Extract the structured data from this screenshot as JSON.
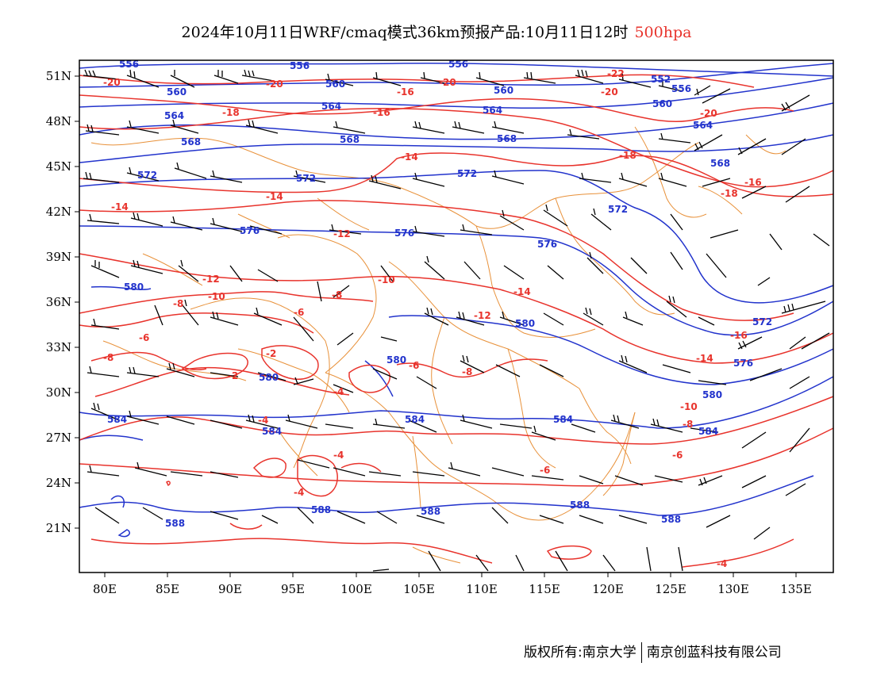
{
  "title": {
    "main": "2024年10月11日WRF/cmaq模式36km预报产品:10月11日12时",
    "level": "500hpa"
  },
  "axes": {
    "lat_labels": [
      "51N",
      "48N",
      "45N",
      "42N",
      "39N",
      "36N",
      "33N",
      "30N",
      "27N",
      "24N",
      "21N"
    ],
    "lon_labels": [
      "80E",
      "85E",
      "90E",
      "95E",
      "100E",
      "105E",
      "110E",
      "115E",
      "120E",
      "125E",
      "130E",
      "135E"
    ]
  },
  "colors": {
    "geopotential": "#2233cc",
    "temperature": "#e8332c",
    "boundaries": "#e8913a",
    "wind": "#000000"
  },
  "geopotential_labels": [
    "556",
    "560",
    "564",
    "568",
    "572",
    "576",
    "580",
    "584",
    "588",
    "552",
    "556",
    "560",
    "564",
    "568",
    "572",
    "576",
    "580",
    "584",
    "588",
    "580",
    "588",
    "588",
    "580",
    "584",
    "584",
    "588",
    "588",
    "576",
    "572",
    "560",
    "568",
    "564",
    "580"
  ],
  "temperature_labels": [
    "-20",
    "-20",
    "-20",
    "-16",
    "-16",
    "-18",
    "-14",
    "-14",
    "-14",
    "-12",
    "-12",
    "-10",
    "-10",
    "-8",
    "-8",
    "-6",
    "-6",
    "-6",
    "-4",
    "-4",
    "-2",
    "-2",
    "-4",
    "-4",
    "-4",
    "-6",
    "-8",
    "-8",
    "-10",
    "-12",
    "-14",
    "-14",
    "-16",
    "-16",
    "-18",
    "-18",
    "-20",
    "-22",
    "-20",
    "-6",
    "-4"
  ],
  "footer": {
    "copyright": "版权所有:南京大学",
    "company": "南京创蓝科技有限公司"
  }
}
